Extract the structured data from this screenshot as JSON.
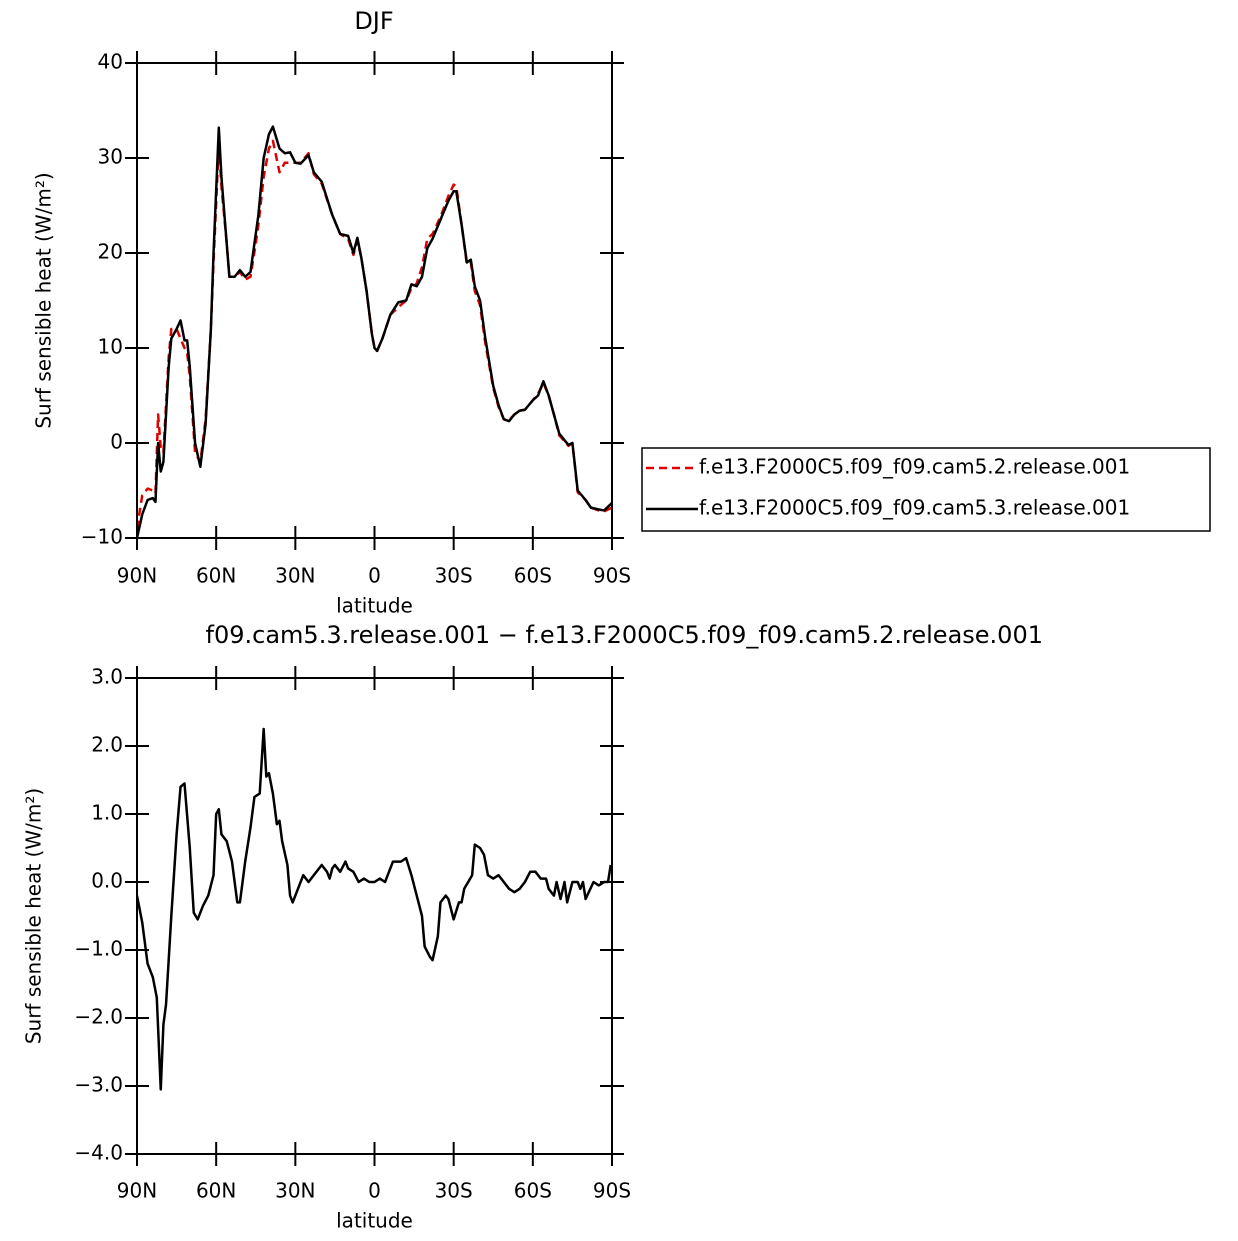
{
  "chart_data": [
    {
      "type": "line",
      "title": "DJF",
      "x_label": "latitude",
      "y_label": "Surf sensible heat (W/m²)",
      "x": [
        90,
        88,
        86,
        84,
        83,
        82,
        81,
        80,
        78,
        77,
        75,
        73.5,
        72,
        71,
        70,
        68,
        66,
        64,
        62,
        61,
        59,
        58,
        56,
        55,
        53,
        51,
        49,
        47,
        45,
        44,
        42,
        40,
        38.5,
        36,
        34,
        32,
        30,
        28,
        25,
        23,
        20,
        16,
        13,
        10,
        8,
        6.5,
        5,
        3,
        1,
        0,
        -1,
        -3,
        -6,
        -9,
        -12,
        -14,
        -16,
        -18,
        -20,
        -22,
        -25,
        -28,
        -30,
        -31,
        -33,
        -35,
        -36.5,
        -38,
        -40,
        -42,
        -45,
        -47,
        -49,
        -51,
        -53,
        -55,
        -57,
        -60,
        -62,
        -64,
        -66,
        -68,
        -70,
        -72,
        -73.5,
        -75,
        -77,
        -80,
        -82,
        -85,
        -87,
        -90
      ],
      "series": [
        {
          "name": "f.e13.F2000C5.f09_f09.cam5.2.release.001",
          "color": "#e00000",
          "line_style": "dashed",
          "values": [
            -9,
            -5.5,
            -4.8,
            -5,
            -5.3,
            3,
            -0.5,
            -1,
            9,
            12,
            12,
            11,
            10,
            9.5,
            7,
            -1,
            -2,
            2.5,
            12,
            19,
            31.5,
            27,
            21,
            17.5,
            17.5,
            18,
            17.2,
            17.5,
            21,
            23,
            28,
            31,
            31.8,
            28.5,
            29.5,
            29.5,
            29.5,
            29.5,
            30.5,
            28.3,
            27.3,
            24,
            22,
            21.5,
            19.8,
            21.3,
            19.5,
            16,
            11.5,
            10,
            9.7,
            11,
            13.5,
            14.3,
            15,
            16.3,
            16.8,
            18.5,
            21.5,
            22,
            23.8,
            26,
            27.2,
            27,
            23,
            18.8,
            19,
            16,
            14.5,
            10.5,
            5.8,
            3.8,
            2.5,
            2.4,
            3,
            3.4,
            3.5,
            4.5,
            5.2,
            6.3,
            5,
            3,
            0.8,
            0.2,
            -0.3,
            0,
            -5.2,
            -6,
            -6.8,
            -7.1,
            -7.2,
            -6.8
          ]
        },
        {
          "name": "f.e13.F2000C5.f09_f09.cam5.3.release.001",
          "color": "#000000",
          "line_style": "solid",
          "values": [
            -10,
            -7.5,
            -6,
            -5.8,
            -6.2,
            0,
            -3,
            -2,
            8,
            11,
            12,
            12.9,
            10.8,
            10.8,
            8,
            0,
            -2.5,
            2,
            12,
            20,
            33.2,
            28,
            21,
            17.5,
            17.5,
            18.2,
            17.5,
            18,
            22,
            24,
            30,
            32.5,
            33.3,
            31,
            30.5,
            30.6,
            29.5,
            29.4,
            30.3,
            28.5,
            27.5,
            24,
            22,
            21.8,
            20,
            21.6,
            19.5,
            16,
            11.5,
            10,
            9.7,
            11,
            13.5,
            14.8,
            15,
            16.7,
            16.5,
            17.5,
            20.5,
            21.5,
            23.5,
            25.5,
            26.5,
            26.5,
            23,
            19,
            19.3,
            16.5,
            15,
            11,
            6,
            4,
            2.5,
            2.3,
            3,
            3.4,
            3.5,
            4.5,
            5,
            6.5,
            5,
            3,
            1,
            0.3,
            -0.2,
            0,
            -5,
            -6,
            -6.8,
            -7,
            -7.1,
            -6.3
          ]
        }
      ],
      "xlim": [
        90,
        -90
      ],
      "xticks": [
        {
          "value": 90,
          "label": "90N"
        },
        {
          "value": 60,
          "label": "60N"
        },
        {
          "value": 30,
          "label": "30N"
        },
        0,
        {
          "value": -30,
          "label": "30S"
        },
        {
          "value": -60,
          "label": "60S"
        },
        {
          "value": -90,
          "label": "90S"
        }
      ],
      "ylim": [
        -10,
        40
      ],
      "yticks": [
        {
          "value": -10,
          "label": "−10"
        },
        0,
        10,
        20,
        30,
        40
      ],
      "legend": "right"
    },
    {
      "type": "line",
      "title": "f09.cam5.3.release.001 − f.e13.F2000C5.f09_f09.cam5.2.release.001",
      "x_label": "latitude",
      "y_label": "Surf sensible heat (W/m²)",
      "x": [
        90,
        88,
        86,
        84,
        82.5,
        81,
        80,
        79,
        77,
        75,
        73.5,
        72,
        70,
        68.5,
        67,
        65,
        63,
        61,
        60,
        59,
        58,
        56,
        54,
        52,
        51,
        49,
        47,
        45.5,
        43.5,
        42,
        41,
        40,
        38.5,
        37,
        36,
        35,
        33,
        32,
        31,
        29,
        27,
        25,
        23,
        20,
        18,
        17,
        16,
        15,
        13,
        11,
        10,
        8,
        6,
        4,
        2,
        0,
        -2,
        -4,
        -5,
        -7,
        -10,
        -12,
        -14,
        -16,
        -18,
        -19,
        -21,
        -22,
        -24,
        -25,
        -27,
        -28,
        -30,
        -32,
        -33,
        -34,
        -37,
        -38,
        -40,
        -41.5,
        -43,
        -45,
        -47,
        -49,
        -51,
        -53,
        -55,
        -57,
        -59,
        -61,
        -63,
        -65,
        -66,
        -68,
        -69,
        -70.5,
        -72,
        -73,
        -75,
        -77,
        -78,
        -79,
        -80,
        -83,
        -85,
        -87,
        -88.5,
        -89.5
      ],
      "color": "#000000",
      "values": [
        -0.2,
        -0.6,
        -1.2,
        -1.4,
        -1.7,
        -3.05,
        -2.1,
        -1.8,
        -0.5,
        0.7,
        1.4,
        1.45,
        0.5,
        -0.45,
        -0.55,
        -0.35,
        -0.2,
        0.1,
        1.0,
        1.07,
        0.7,
        0.6,
        0.3,
        -0.3,
        -0.3,
        0.3,
        0.8,
        1.25,
        1.3,
        2.25,
        1.55,
        1.6,
        1.3,
        0.85,
        0.9,
        0.6,
        0.25,
        -0.2,
        -0.3,
        -0.1,
        0.1,
        0,
        0.1,
        0.25,
        0.15,
        0.05,
        0.2,
        0.25,
        0.15,
        0.3,
        0.2,
        0.15,
        0,
        0.05,
        0,
        0,
        0.05,
        0,
        0.1,
        0.3,
        0.3,
        0.35,
        0.1,
        -0.2,
        -0.5,
        -0.95,
        -1.1,
        -1.15,
        -0.8,
        -0.3,
        -0.2,
        -0.25,
        -0.55,
        -0.3,
        -0.3,
        -0.1,
        0.1,
        0.55,
        0.5,
        0.4,
        0.1,
        0.05,
        0.1,
        0,
        -0.1,
        -0.15,
        -0.1,
        0,
        0.15,
        0.15,
        0.05,
        0.05,
        -0.1,
        -0.2,
        0,
        -0.25,
        0,
        -0.3,
        0,
        0,
        -0.1,
        0,
        -0.25,
        0,
        -0.05,
        0,
        0,
        0.25
      ],
      "xlim": [
        90,
        -90
      ],
      "xticks": [
        {
          "value": 90,
          "label": "90N"
        },
        {
          "value": 60,
          "label": "60N"
        },
        {
          "value": 30,
          "label": "30N"
        },
        0,
        {
          "value": -30,
          "label": "30S"
        },
        {
          "value": -60,
          "label": "60S"
        },
        {
          "value": -90,
          "label": "90S"
        }
      ],
      "ylim": [
        -4,
        3
      ],
      "yticks": [
        {
          "value": -4,
          "label": "−4.0"
        },
        {
          "value": -3,
          "label": "−3.0"
        },
        {
          "value": -2,
          "label": "−2.0"
        },
        {
          "value": -1,
          "label": "−1.0"
        },
        {
          "value": 0,
          "label": "0.0"
        },
        {
          "value": 1,
          "label": "1.0"
        },
        {
          "value": 2,
          "label": "2.0"
        },
        {
          "value": 3,
          "label": "3.0"
        }
      ]
    }
  ]
}
